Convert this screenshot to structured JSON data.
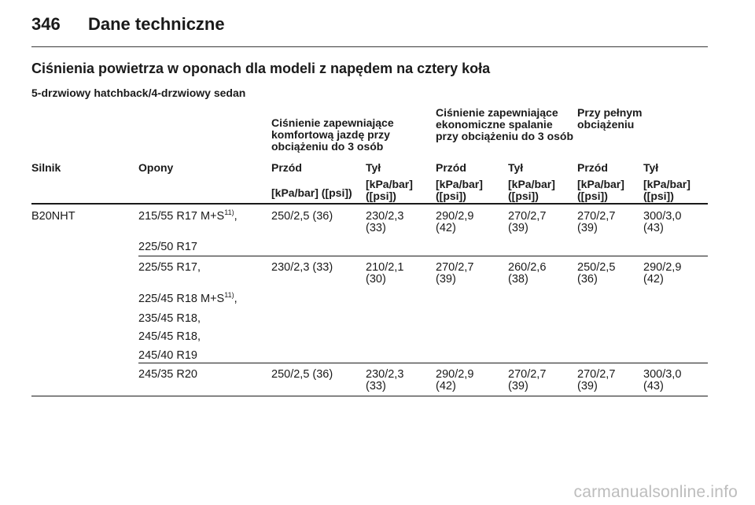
{
  "page": {
    "number": "346",
    "chapter": "Dane techniczne"
  },
  "section_title": "Ciśnienia powietrza w oponach dla modeli z napędem na cztery koła",
  "subsection_title": "5-drzwiowy hatchback/4-drzwiowy sedan",
  "table": {
    "group_headers": {
      "comfort": "Ciśnienie zapewniające komfortową jazdę przy obciążeniu do 3 osób",
      "economy": "Ciśnienie zapewniające ekonomiczne spalanie przy obciążeniu do 3 osób",
      "full": "Przy pełnym obciążeniu"
    },
    "columns": {
      "engine": "Silnik",
      "tyres": "Opony",
      "front": "Przód",
      "rear": "Tył",
      "unit_single": "[kPa/bar] ([psi])",
      "unit_split": "[kPa/bar] ([psi])"
    },
    "rows": [
      {
        "engine": "B20NHT",
        "tyres": [
          "215/55 R17 M+S",
          "225/50 R17"
        ],
        "tyre_footnote": "11)",
        "comfort_front": "250/2,5 (36)",
        "comfort_rear": "230/2,3 (33)",
        "eco_front": "290/2,9 (42)",
        "eco_rear": "270/2,7 (39)",
        "full_front": "270/2,7 (39)",
        "full_rear": "300/3,0 (43)"
      },
      {
        "engine": "",
        "tyres": [
          "225/55 R17,",
          "225/45 R18 M+S",
          "235/45 R18,",
          "245/45 R18,",
          "245/40 R19"
        ],
        "tyre_footnote": "11)",
        "comfort_front": "230/2,3 (33)",
        "comfort_rear": "210/2,1 (30)",
        "eco_front": "270/2,7 (39)",
        "eco_rear": "260/2,6 (38)",
        "full_front": "250/2,5 (36)",
        "full_rear": "290/2,9 (42)"
      },
      {
        "engine": "",
        "tyres": [
          "245/35 R20"
        ],
        "comfort_front": "250/2,5 (36)",
        "comfort_rear": "230/2,3 (33)",
        "eco_front": "290/2,9 (42)",
        "eco_rear": "270/2,7 (39)",
        "full_front": "270/2,7 (39)",
        "full_rear": "300/3,0 (43)"
      }
    ]
  },
  "watermark": "carmanualsonline.info"
}
